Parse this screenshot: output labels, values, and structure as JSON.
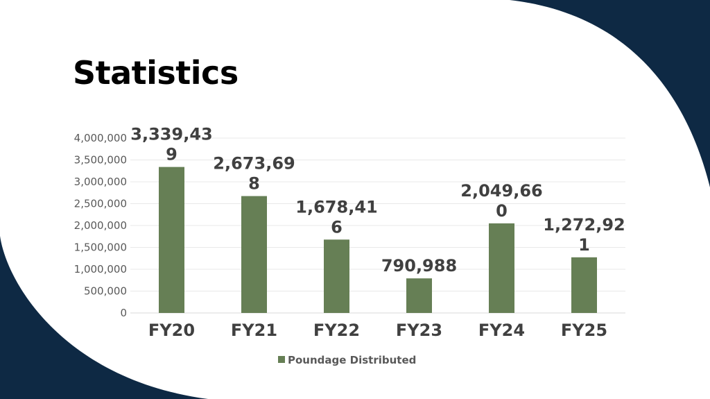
{
  "slide": {
    "title": "Statistics",
    "background_color": "#ffffff",
    "accent_color": "#0e2944"
  },
  "chart_data": {
    "type": "bar",
    "categories": [
      "FY20",
      "FY21",
      "FY22",
      "FY23",
      "FY24",
      "FY25"
    ],
    "series": [
      {
        "name": "Poundage Distributed",
        "color": "#667f55",
        "values": [
          3339439,
          2673698,
          1678416,
          790988,
          2049660,
          1272921
        ],
        "data_labels": [
          [
            "3,339,43",
            "9"
          ],
          [
            "2,673,69",
            "8"
          ],
          [
            "1,678,41",
            "6"
          ],
          [
            "790,988"
          ],
          [
            "2,049,66",
            "0"
          ],
          [
            "1,272,92",
            "1"
          ]
        ]
      }
    ],
    "y_ticks": [
      "0",
      "500,000",
      "1,000,000",
      "1,500,000",
      "2,000,000",
      "2,500,000",
      "3,000,000",
      "3,500,000",
      "4,000,000"
    ],
    "ylim": [
      0,
      4000000
    ],
    "grid": true,
    "legend": "bottom"
  }
}
